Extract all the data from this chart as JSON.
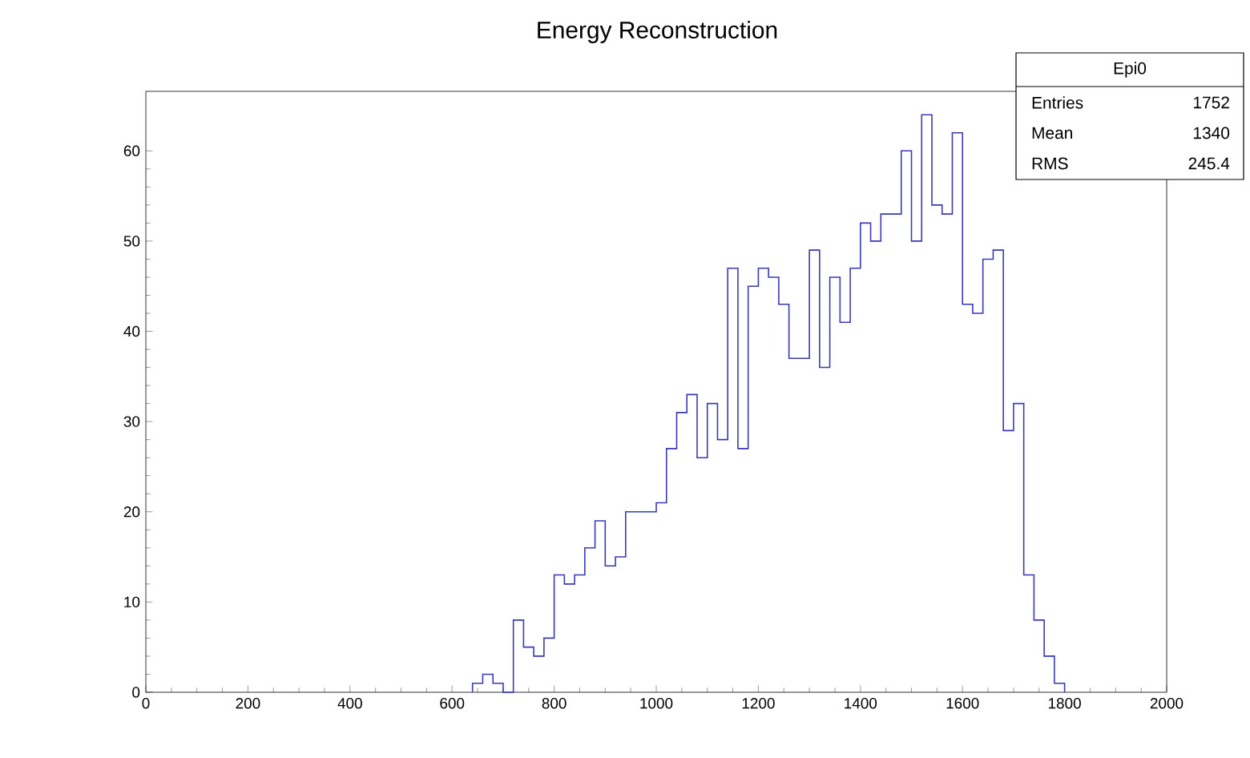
{
  "chart_data": {
    "type": "histogram",
    "title": "Energy Reconstruction",
    "legend_title": "Epi0",
    "annotations": [
      "Entries",
      "1752",
      "Mean",
      "1340",
      "RMS",
      "245.4"
    ],
    "bins": [
      640,
      660,
      680,
      700,
      720,
      740,
      760,
      780,
      800,
      820,
      840,
      860,
      880,
      900,
      920,
      940,
      960,
      980,
      1000,
      1020,
      1040,
      1060,
      1080,
      1100,
      1120,
      1140,
      1160,
      1180,
      1200,
      1220,
      1240,
      1260,
      1280,
      1300,
      1320,
      1340,
      1360,
      1380,
      1400,
      1420,
      1440,
      1460,
      1480,
      1500,
      1520,
      1540,
      1560,
      1580,
      1600,
      1620,
      1640,
      1660,
      1680,
      1700,
      1720,
      1740,
      1760,
      1780,
      1800
    ],
    "values": [
      1,
      2,
      1,
      0,
      8,
      5,
      4,
      6,
      13,
      12,
      13,
      16,
      19,
      14,
      15,
      20,
      20,
      20,
      21,
      27,
      31,
      33,
      26,
      32,
      28,
      47,
      27,
      45,
      47,
      46,
      43,
      37,
      37,
      49,
      36,
      46,
      41,
      47,
      52,
      50,
      53,
      53,
      60,
      50,
      64,
      54,
      53,
      62,
      43,
      42,
      48,
      49,
      29,
      32,
      13,
      8,
      4,
      1
    ],
    "color": "#3a3ab4",
    "xlim": [
      0,
      2000
    ],
    "ylim": [
      0,
      66.6
    ],
    "xticks": [
      0,
      200,
      400,
      600,
      800,
      1000,
      1200,
      1400,
      1600,
      1800,
      2000
    ],
    "yticks": [
      0,
      10,
      20,
      30,
      40,
      50,
      60
    ],
    "grid": false
  }
}
